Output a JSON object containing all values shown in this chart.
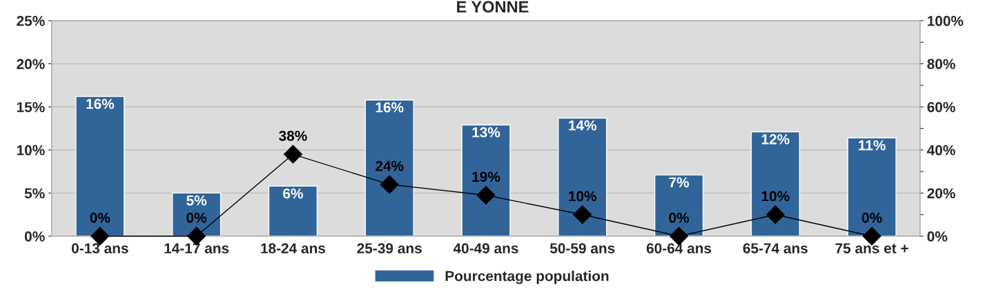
{
  "chart_data": {
    "type": "bar",
    "title": "E YONNE",
    "categories": [
      "0-13 ans",
      "14-17 ans",
      "18-24 ans",
      "25-39 ans",
      "40-49 ans",
      "50-59 ans",
      "60-64 ans",
      "65-74 ans",
      "75 ans et +"
    ],
    "series": [
      {
        "name": "Pourcentage population",
        "color": "#31659a",
        "values": [
          16.2,
          5.0,
          5.8,
          15.8,
          12.9,
          13.7,
          7.1,
          12.1,
          11.4
        ],
        "value_labels": [
          "16%",
          "5%",
          "6%",
          "16%",
          "13%",
          "14%",
          "7%",
          "12%",
          "11%"
        ]
      },
      {
        "type": "line",
        "axis": "y2",
        "color": "#000000",
        "marker": "diamond",
        "line_style": "solid",
        "values": [
          0,
          0,
          38,
          24,
          19,
          10,
          0,
          10,
          0
        ],
        "value_labels": [
          "0%",
          "0%",
          "38%",
          "24%",
          "19%",
          "10%",
          "0%",
          "10%",
          "0%"
        ]
      }
    ],
    "ylim": [
      0,
      25
    ],
    "yticks": [
      {
        "value": 0,
        "label": "0%"
      },
      {
        "value": 5,
        "label": "5%"
      },
      {
        "value": 10,
        "label": "10%"
      },
      {
        "value": 15,
        "label": "15%"
      },
      {
        "value": 20,
        "label": "20%"
      },
      {
        "value": 25,
        "label": "25%"
      }
    ],
    "y2lim": [
      0,
      100
    ],
    "y2ticks": [
      {
        "value": 0,
        "label": "0%"
      },
      {
        "value": 10,
        "label": null
      },
      {
        "value": 20,
        "label": "20%"
      },
      {
        "value": 30,
        "label": null
      },
      {
        "value": 40,
        "label": "40%"
      },
      {
        "value": 50,
        "label": null
      },
      {
        "value": 60,
        "label": "60%"
      },
      {
        "value": 70,
        "label": null
      },
      {
        "value": 80,
        "label": "80%"
      },
      {
        "value": 90,
        "label": null
      },
      {
        "value": 100,
        "label": "100%"
      }
    ],
    "grid": "y",
    "legend": "bottom"
  }
}
